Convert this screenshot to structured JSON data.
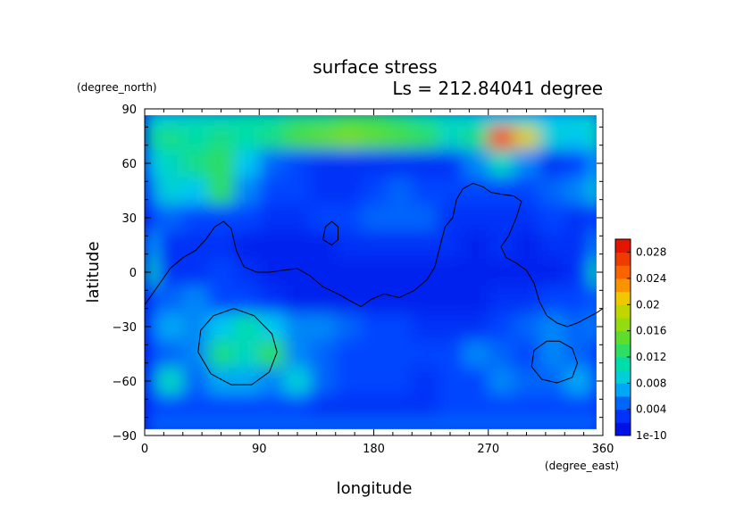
{
  "chart_data": {
    "type": "heatmap",
    "title": "surface stress",
    "subtitle": "Ls = 212.84041 degree",
    "xlabel": "longitude",
    "ylabel": "latitude",
    "x_unit": "(degree_east)",
    "y_unit": "(degree_north)",
    "xlim": [
      0,
      360
    ],
    "ylim": [
      -90,
      90
    ],
    "x_ticks": [
      "0",
      "90",
      "180",
      "270",
      "360"
    ],
    "y_ticks": [
      "90",
      "60",
      "30",
      "0",
      "−30",
      "−60",
      "−90"
    ],
    "colorbar": {
      "min": 0,
      "max": 0.03,
      "tick_labels": [
        "1e-10",
        "0.004",
        "0.008",
        "0.012",
        "0.016",
        "0.02",
        "0.024",
        "0.028"
      ],
      "tick_values": [
        0,
        0.004,
        0.008,
        0.012,
        0.016,
        0.02,
        0.024,
        0.028
      ]
    },
    "colors": {
      "low": "#0000dd",
      "mid": "#00ddcc",
      "green": "#55dd33",
      "high": "#dd0000"
    },
    "field_grid": {
      "lon_step": 20,
      "lat_values": [
        86,
        75,
        60,
        45,
        30,
        15,
        0,
        -15,
        -30,
        -45,
        -60,
        -75,
        -86
      ],
      "values": [
        [
          0.009,
          0.009,
          0.01,
          0.01,
          0.011,
          0.011,
          0.012,
          0.012,
          0.013,
          0.013,
          0.012,
          0.011,
          0.01,
          0.009,
          0.009,
          0.009,
          0.008,
          0.009,
          0.009
        ],
        [
          0.011,
          0.012,
          0.011,
          0.012,
          0.011,
          0.012,
          0.014,
          0.015,
          0.016,
          0.015,
          0.014,
          0.013,
          0.01,
          0.012,
          0.026,
          0.02,
          0.009,
          0.008,
          0.011
        ],
        [
          0.008,
          0.01,
          0.012,
          0.013,
          0.008,
          0.005,
          0.004,
          0.003,
          0.003,
          0.003,
          0.003,
          0.003,
          0.003,
          0.006,
          0.01,
          0.006,
          0.003,
          0.004,
          0.007
        ],
        [
          0.006,
          0.009,
          0.008,
          0.013,
          0.006,
          0.004,
          0.004,
          0.003,
          0.003,
          0.004,
          0.005,
          0.004,
          0.004,
          0.004,
          0.004,
          0.004,
          0.005,
          0.006,
          0.009
        ],
        [
          0.004,
          0.005,
          0.004,
          0.004,
          0.004,
          0.003,
          0.003,
          0.004,
          0.004,
          0.005,
          0.005,
          0.005,
          0.003,
          0.003,
          0.003,
          0.003,
          0.004,
          0.003,
          0.004
        ],
        [
          0.007,
          0.003,
          0.003,
          0.003,
          0.002,
          0.002,
          0.002,
          0.002,
          0.003,
          0.003,
          0.003,
          0.003,
          0.003,
          0.002,
          0.003,
          0.002,
          0.003,
          0.003,
          0.006
        ],
        [
          0.01,
          0.003,
          0.003,
          0.004,
          0.003,
          0.002,
          0.002,
          0.002,
          0.002,
          0.002,
          0.002,
          0.002,
          0.002,
          0.002,
          0.002,
          0.002,
          0.002,
          0.003,
          0.011
        ],
        [
          0.004,
          0.005,
          0.006,
          0.004,
          0.004,
          0.003,
          0.002,
          0.002,
          0.002,
          0.002,
          0.002,
          0.002,
          0.002,
          0.002,
          0.003,
          0.003,
          0.004,
          0.004,
          0.005
        ],
        [
          0.005,
          0.007,
          0.006,
          0.008,
          0.011,
          0.008,
          0.006,
          0.006,
          0.005,
          0.004,
          0.004,
          0.003,
          0.003,
          0.003,
          0.004,
          0.005,
          0.006,
          0.005,
          0.006
        ],
        [
          0.004,
          0.005,
          0.006,
          0.012,
          0.01,
          0.013,
          0.006,
          0.005,
          0.004,
          0.004,
          0.004,
          0.004,
          0.004,
          0.006,
          0.005,
          0.004,
          0.006,
          0.005,
          0.004
        ],
        [
          0.005,
          0.01,
          0.005,
          0.007,
          0.007,
          0.006,
          0.009,
          0.005,
          0.004,
          0.004,
          0.004,
          0.003,
          0.004,
          0.004,
          0.006,
          0.005,
          0.005,
          0.007,
          0.005
        ],
        [
          0.004,
          0.004,
          0.004,
          0.004,
          0.004,
          0.004,
          0.004,
          0.003,
          0.003,
          0.003,
          0.003,
          0.003,
          0.004,
          0.004,
          0.004,
          0.004,
          0.004,
          0.004,
          0.004
        ],
        [
          0.005,
          0.005,
          0.005,
          0.005,
          0.005,
          0.005,
          0.005,
          0.005,
          0.005,
          0.005,
          0.005,
          0.005,
          0.005,
          0.005,
          0.005,
          0.005,
          0.005,
          0.005,
          0.005
        ]
      ]
    },
    "contours": [
      [
        [
          0,
          -18
        ],
        [
          10,
          -8
        ],
        [
          20,
          2
        ],
        [
          30,
          8
        ],
        [
          40,
          12
        ],
        [
          48,
          18
        ],
        [
          55,
          25
        ],
        [
          62,
          28
        ],
        [
          68,
          24
        ],
        [
          72,
          12
        ],
        [
          78,
          3
        ],
        [
          88,
          0
        ],
        [
          98,
          0
        ],
        [
          108,
          1
        ],
        [
          120,
          2
        ],
        [
          130,
          -2
        ],
        [
          140,
          -8
        ],
        [
          152,
          -12
        ],
        [
          162,
          -16
        ],
        [
          170,
          -19
        ],
        [
          178,
          -15
        ],
        [
          188,
          -12
        ],
        [
          200,
          -14
        ],
        [
          212,
          -10
        ],
        [
          222,
          -4
        ],
        [
          228,
          3
        ],
        [
          232,
          14
        ],
        [
          236,
          25
        ],
        [
          242,
          30
        ],
        [
          245,
          40
        ],
        [
          250,
          46
        ],
        [
          258,
          49
        ],
        [
          266,
          47
        ],
        [
          272,
          44
        ],
        [
          280,
          43
        ],
        [
          290,
          42
        ],
        [
          296,
          39
        ],
        [
          292,
          30
        ],
        [
          286,
          20
        ],
        [
          280,
          14
        ],
        [
          284,
          8
        ],
        [
          292,
          5
        ],
        [
          300,
          1
        ],
        [
          306,
          -6
        ],
        [
          310,
          -16
        ],
        [
          316,
          -24
        ],
        [
          324,
          -28
        ],
        [
          332,
          -30
        ],
        [
          340,
          -28
        ],
        [
          348,
          -25
        ],
        [
          356,
          -22
        ],
        [
          360,
          -20
        ]
      ],
      [
        [
          140,
          18
        ],
        [
          142,
          25
        ],
        [
          147,
          28
        ],
        [
          152,
          25
        ],
        [
          152,
          18
        ],
        [
          147,
          15
        ],
        [
          140,
          18
        ]
      ],
      [
        [
          70,
          -20
        ],
        [
          86,
          -24
        ],
        [
          100,
          -34
        ],
        [
          104,
          -44
        ],
        [
          98,
          -55
        ],
        [
          84,
          -62
        ],
        [
          68,
          -62
        ],
        [
          52,
          -56
        ],
        [
          42,
          -44
        ],
        [
          44,
          -32
        ],
        [
          54,
          -24
        ],
        [
          70,
          -20
        ]
      ],
      [
        [
          326,
          -38
        ],
        [
          336,
          -42
        ],
        [
          340,
          -50
        ],
        [
          336,
          -58
        ],
        [
          324,
          -61
        ],
        [
          312,
          -59
        ],
        [
          304,
          -52
        ],
        [
          306,
          -43
        ],
        [
          316,
          -38
        ],
        [
          326,
          -38
        ]
      ]
    ]
  }
}
